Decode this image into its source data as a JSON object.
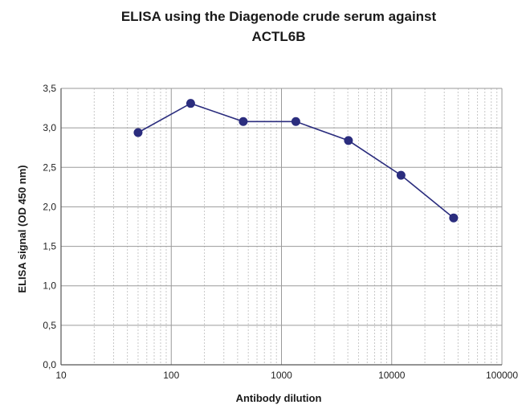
{
  "chart_data": {
    "type": "line",
    "title_lines": [
      "ELISA using the Diagenode crude serum against",
      "ACTL6B"
    ],
    "xlabel": "Antibody dilution",
    "ylabel": "ELISA signal (OD 450 nm)",
    "x_scale": "log",
    "xlim": [
      10,
      100000
    ],
    "ylim": [
      0,
      3.5
    ],
    "x_ticks": [
      10,
      100,
      1000,
      10000,
      100000
    ],
    "x_tick_labels": [
      "10",
      "100",
      "1000",
      "10000",
      "100000"
    ],
    "y_ticks": [
      0,
      0.5,
      1,
      1.5,
      2,
      2.5,
      3,
      3.5
    ],
    "y_tick_labels": [
      "0,0",
      "0,5",
      "1,0",
      "1,5",
      "2,0",
      "2,5",
      "3,0",
      "3,5"
    ],
    "grid": true,
    "legend": "none",
    "series": [
      {
        "color": "#2b2d7e",
        "marker": "circle",
        "points": [
          {
            "x": 50,
            "y": 2.94
          },
          {
            "x": 150,
            "y": 3.31
          },
          {
            "x": 450,
            "y": 3.08
          },
          {
            "x": 1350,
            "y": 3.08
          },
          {
            "x": 4050,
            "y": 2.84
          },
          {
            "x": 12150,
            "y": 2.4
          },
          {
            "x": 36450,
            "y": 1.86
          }
        ]
      }
    ],
    "colors": {
      "major_grid": "#9a9a9a",
      "minor_grid": "#c8c8c8",
      "axis": "#555555"
    }
  }
}
